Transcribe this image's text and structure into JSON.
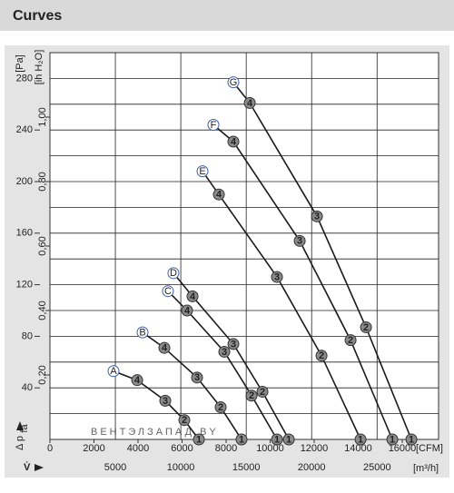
{
  "header": {
    "title": "Curves"
  },
  "chart_data": {
    "type": "line",
    "y_label": "Δ p",
    "y_label_sub": "fa",
    "y_unit": "[Pa]",
    "y2_unit": "[in H₂O]",
    "x_label": "V̇",
    "x_unit": "[m³/h]",
    "x2_unit": "[CFM]",
    "watermark": "ВЕНТЭЛЗАПАД.BY",
    "xlim": [
      0,
      29700
    ],
    "xticks": [
      5000,
      10000,
      15000,
      20000,
      25000
    ],
    "ylim": [
      0,
      300
    ],
    "yticks": [
      40,
      80,
      120,
      160,
      200,
      240,
      280
    ],
    "ygrid": [
      20,
      40,
      60,
      80,
      100,
      120,
      140,
      160,
      180,
      200,
      220,
      240,
      260,
      280
    ],
    "x2lim": [
      0,
      17650
    ],
    "x2ticks": [
      0,
      2000,
      4000,
      6000,
      8000,
      10000,
      12000,
      14000,
      16000
    ],
    "y2lim": [
      0,
      1.2
    ],
    "y2ticks": [
      {
        "value": 0.2,
        "label": "0,20"
      },
      {
        "value": 0.4,
        "label": "0,40"
      },
      {
        "value": 0.6,
        "label": "0,60"
      },
      {
        "value": 0.8,
        "label": "0,80"
      },
      {
        "value": 1.0,
        "label": "1,00"
      }
    ],
    "grid": true,
    "series": [
      {
        "name": "A",
        "color": "#1a1a1a",
        "x": [
          4858,
          6667,
          8814,
          10271,
          11382
        ],
        "values": [
          53,
          46,
          30,
          15,
          0
        ],
        "point_labels": [
          null,
          "4",
          "3",
          "2",
          "1"
        ]
      },
      {
        "name": "B",
        "color": "#1a1a1a",
        "x": [
          7079,
          8744,
          11243,
          13047,
          14643
        ],
        "values": [
          83,
          71,
          48,
          25,
          0
        ],
        "point_labels": [
          null,
          "4",
          "3",
          "2",
          "1"
        ]
      },
      {
        "name": "C",
        "color": "#1a1a1a",
        "x": [
          9022,
          10480,
          13325,
          15410,
          17353
        ],
        "values": [
          115,
          100,
          68,
          34,
          0
        ],
        "point_labels": [
          null,
          "4",
          "3",
          "2",
          "1"
        ]
      },
      {
        "name": "D",
        "color": "#1a1a1a",
        "x": [
          9438,
          10896,
          14020,
          16240,
          18254
        ],
        "values": [
          129,
          111,
          74,
          37,
          0
        ],
        "point_labels": [
          null,
          "4",
          "3",
          "2",
          "1"
        ]
      },
      {
        "name": "E",
        "color": "#1a1a1a",
        "x": [
          11659,
          12910,
          17352,
          20754,
          23738
        ],
        "values": [
          208,
          190,
          126,
          65,
          0
        ],
        "point_labels": [
          null,
          "4",
          "3",
          "2",
          "1"
        ]
      },
      {
        "name": "F",
        "color": "#1a1a1a",
        "x": [
          12492,
          14020,
          19088,
          22975,
          26167
        ],
        "values": [
          244,
          231,
          154,
          77,
          0
        ],
        "point_labels": [
          null,
          "4",
          "3",
          "2",
          "1"
        ]
      },
      {
        "name": "G",
        "color": "#1a1a1a",
        "x": [
          14019,
          15270,
          20406,
          24155,
          27625
        ],
        "values": [
          277,
          261,
          173,
          87,
          0
        ],
        "point_labels": [
          null,
          "4",
          "3",
          "2",
          "1"
        ]
      }
    ]
  }
}
